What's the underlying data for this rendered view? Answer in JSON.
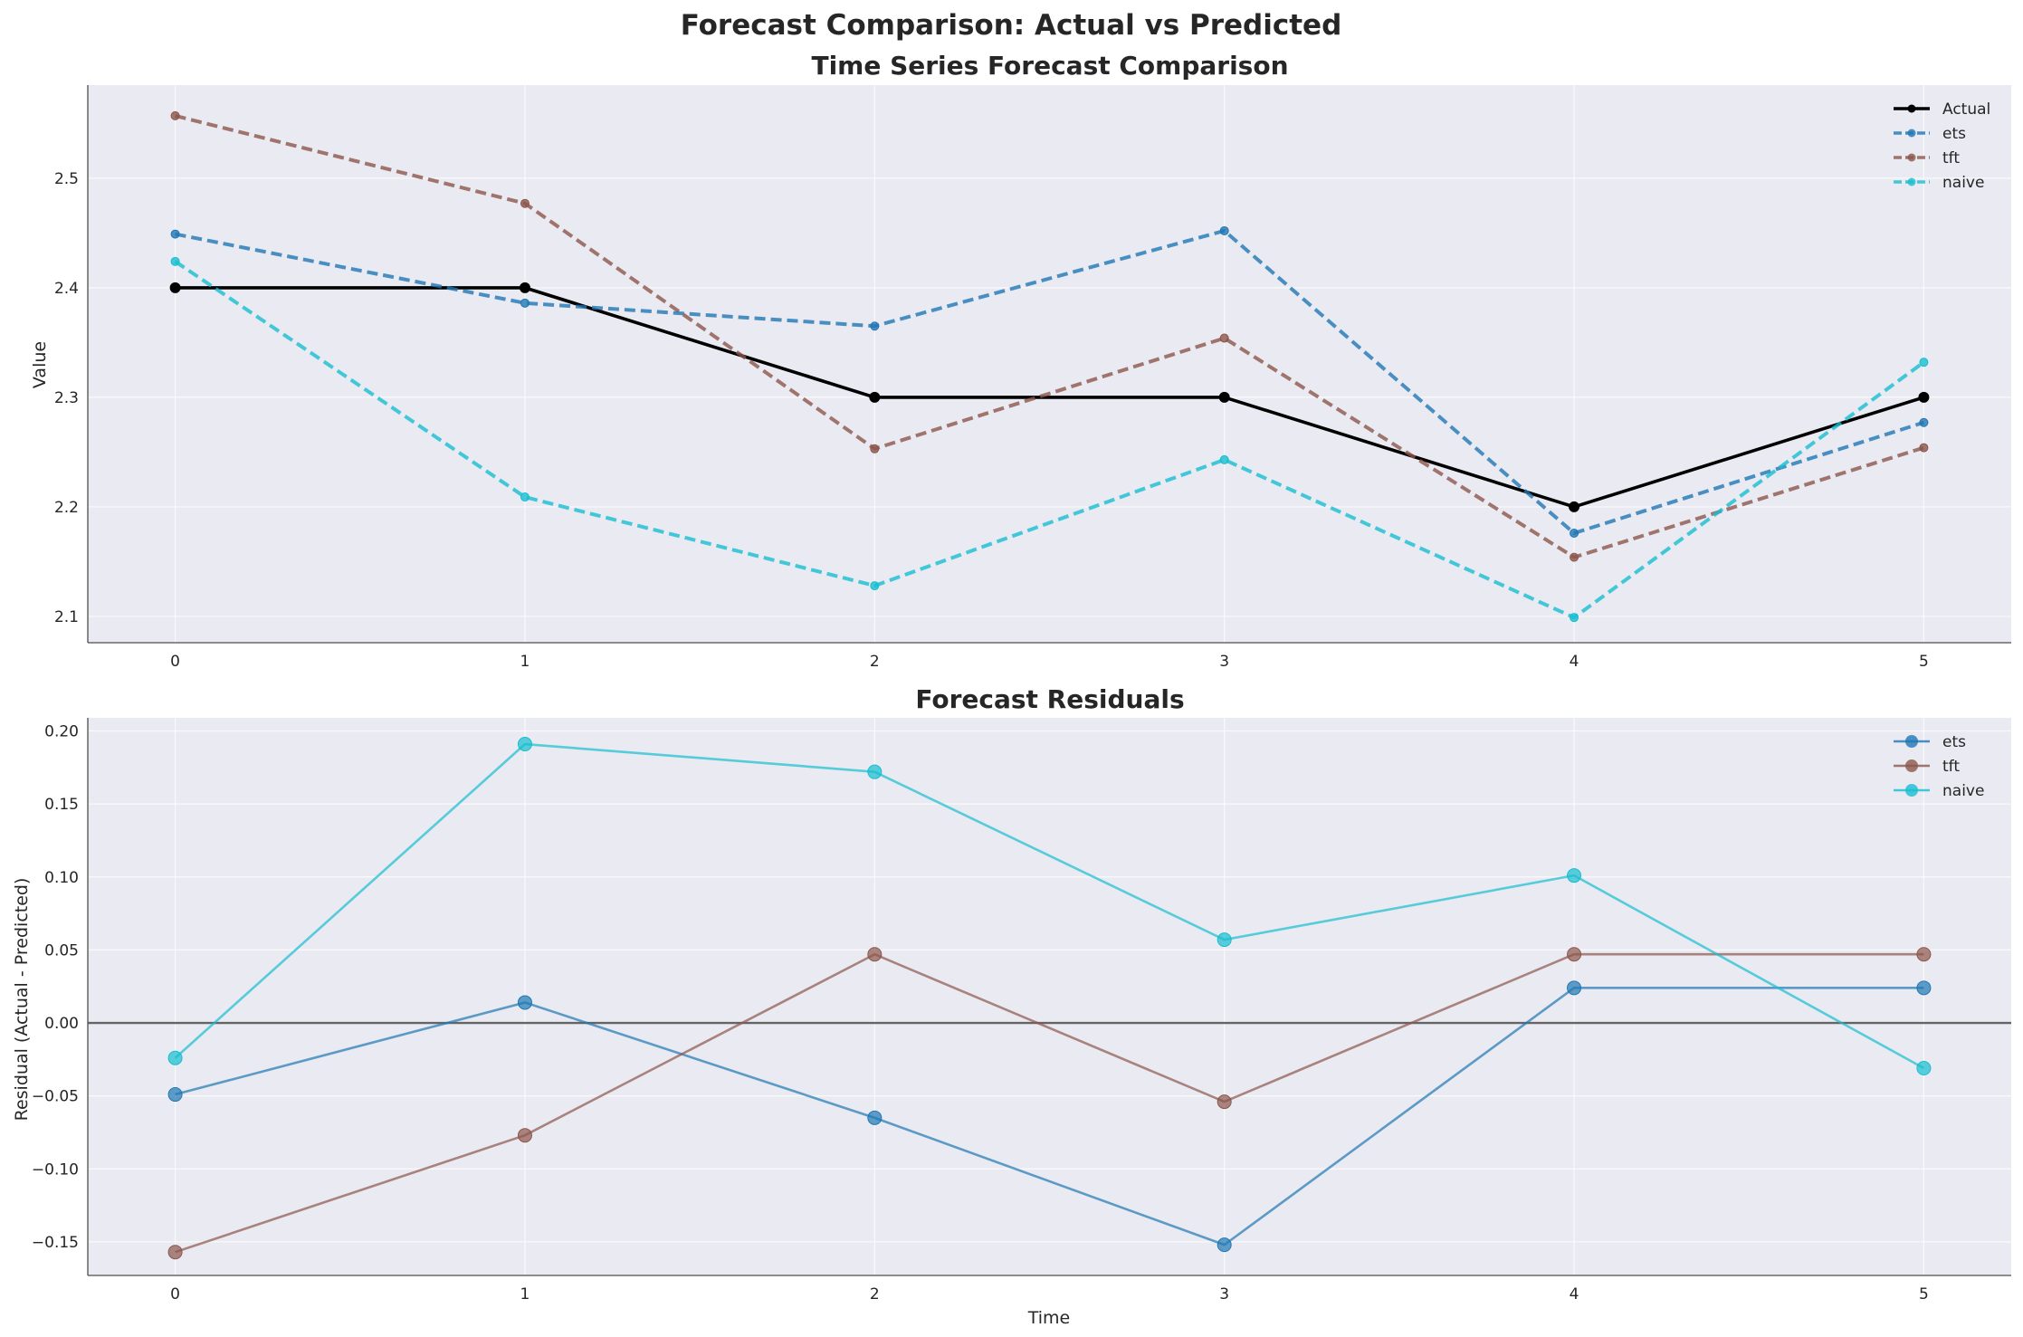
{
  "figure": {
    "suptitle": "Forecast Comparison: Actual vs Predicted",
    "background": "#ffffff",
    "axes_face": "#eaeaf2"
  },
  "chart_data": [
    {
      "type": "line",
      "title": "Time Series Forecast Comparison",
      "xlabel": "",
      "ylabel": "Value",
      "x": [
        0,
        1,
        2,
        3,
        4,
        5
      ],
      "xticks": [
        "0",
        "1",
        "2",
        "3",
        "4",
        "5"
      ],
      "yticks": [
        "2.1",
        "2.2",
        "2.3",
        "2.4",
        "2.5"
      ],
      "xlim": [
        -0.25,
        5.25
      ],
      "ylim": [
        2.076,
        2.585
      ],
      "grid": true,
      "legend_position": "top-right",
      "series": [
        {
          "name": "Actual",
          "values": [
            2.4,
            2.4,
            2.3,
            2.3,
            2.2,
            2.3
          ],
          "color": "#000000",
          "style": "solid"
        },
        {
          "name": "ets",
          "values": [
            2.449,
            2.386,
            2.365,
            2.452,
            2.176,
            2.277
          ],
          "color": "#1f77b4",
          "style": "dashed"
        },
        {
          "name": "tft",
          "values": [
            2.557,
            2.477,
            2.253,
            2.354,
            2.154,
            2.254
          ],
          "color": "#8c564b",
          "style": "dashed"
        },
        {
          "name": "naive",
          "values": [
            2.424,
            2.209,
            2.128,
            2.243,
            2.099,
            2.332
          ],
          "color": "#17becf",
          "style": "dashed"
        }
      ]
    },
    {
      "type": "line",
      "title": "Forecast Residuals",
      "xlabel": "Time",
      "ylabel": "Residual (Actual - Predicted)",
      "x": [
        0,
        1,
        2,
        3,
        4,
        5
      ],
      "xticks": [
        "0",
        "1",
        "2",
        "3",
        "4",
        "5"
      ],
      "yticks": [
        "−0.15",
        "−0.10",
        "−0.05",
        "0.00",
        "0.05",
        "0.10",
        "0.15",
        "0.20"
      ],
      "xlim": [
        -0.25,
        5.25
      ],
      "ylim": [
        -0.173,
        0.209
      ],
      "grid": true,
      "zero_line": true,
      "legend_position": "top-right",
      "series": [
        {
          "name": "ets",
          "values": [
            -0.049,
            0.014,
            -0.065,
            -0.152,
            0.024,
            0.024
          ],
          "color": "#1f77b4",
          "style": "solid"
        },
        {
          "name": "tft",
          "values": [
            -0.157,
            -0.077,
            0.047,
            -0.054,
            0.047,
            0.047
          ],
          "color": "#8c564b",
          "style": "solid"
        },
        {
          "name": "naive",
          "values": [
            -0.024,
            0.191,
            0.172,
            0.057,
            0.101,
            -0.031
          ],
          "color": "#17becf",
          "style": "solid"
        }
      ]
    }
  ]
}
